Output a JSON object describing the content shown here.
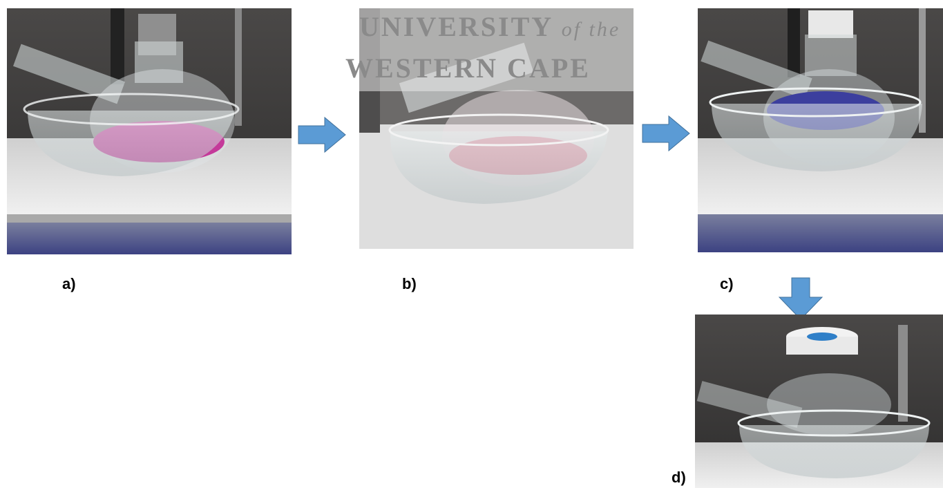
{
  "figure": {
    "labels": [
      "a)",
      "b)",
      "c)",
      "d)"
    ],
    "watermark": {
      "line1": "UNIVERSITY",
      "line1_suffix": "of the",
      "line2": "WESTERN CAPE"
    }
  }
}
